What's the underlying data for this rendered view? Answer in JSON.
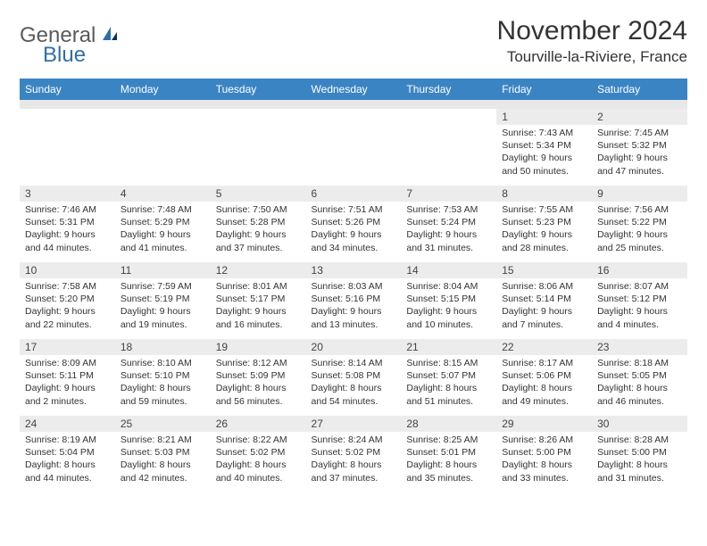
{
  "brand": {
    "part1": "General",
    "part2": "Blue"
  },
  "title": "November 2024",
  "location": "Tourville-la-Riviere, France",
  "colors": {
    "header_bg": "#3b84c4",
    "header_fg": "#ffffff",
    "daynum_bg": "#ececec",
    "blank_bg": "#e8e8e8",
    "text": "#333333",
    "logo_gray": "#5a5a5a",
    "logo_blue": "#2f6fa8"
  },
  "weekdays": [
    "Sunday",
    "Monday",
    "Tuesday",
    "Wednesday",
    "Thursday",
    "Friday",
    "Saturday"
  ],
  "weeks": [
    [
      null,
      null,
      null,
      null,
      null,
      {
        "n": "1",
        "sr": "Sunrise: 7:43 AM",
        "ss": "Sunset: 5:34 PM",
        "d1": "Daylight: 9 hours",
        "d2": "and 50 minutes."
      },
      {
        "n": "2",
        "sr": "Sunrise: 7:45 AM",
        "ss": "Sunset: 5:32 PM",
        "d1": "Daylight: 9 hours",
        "d2": "and 47 minutes."
      }
    ],
    [
      {
        "n": "3",
        "sr": "Sunrise: 7:46 AM",
        "ss": "Sunset: 5:31 PM",
        "d1": "Daylight: 9 hours",
        "d2": "and 44 minutes."
      },
      {
        "n": "4",
        "sr": "Sunrise: 7:48 AM",
        "ss": "Sunset: 5:29 PM",
        "d1": "Daylight: 9 hours",
        "d2": "and 41 minutes."
      },
      {
        "n": "5",
        "sr": "Sunrise: 7:50 AM",
        "ss": "Sunset: 5:28 PM",
        "d1": "Daylight: 9 hours",
        "d2": "and 37 minutes."
      },
      {
        "n": "6",
        "sr": "Sunrise: 7:51 AM",
        "ss": "Sunset: 5:26 PM",
        "d1": "Daylight: 9 hours",
        "d2": "and 34 minutes."
      },
      {
        "n": "7",
        "sr": "Sunrise: 7:53 AM",
        "ss": "Sunset: 5:24 PM",
        "d1": "Daylight: 9 hours",
        "d2": "and 31 minutes."
      },
      {
        "n": "8",
        "sr": "Sunrise: 7:55 AM",
        "ss": "Sunset: 5:23 PM",
        "d1": "Daylight: 9 hours",
        "d2": "and 28 minutes."
      },
      {
        "n": "9",
        "sr": "Sunrise: 7:56 AM",
        "ss": "Sunset: 5:22 PM",
        "d1": "Daylight: 9 hours",
        "d2": "and 25 minutes."
      }
    ],
    [
      {
        "n": "10",
        "sr": "Sunrise: 7:58 AM",
        "ss": "Sunset: 5:20 PM",
        "d1": "Daylight: 9 hours",
        "d2": "and 22 minutes."
      },
      {
        "n": "11",
        "sr": "Sunrise: 7:59 AM",
        "ss": "Sunset: 5:19 PM",
        "d1": "Daylight: 9 hours",
        "d2": "and 19 minutes."
      },
      {
        "n": "12",
        "sr": "Sunrise: 8:01 AM",
        "ss": "Sunset: 5:17 PM",
        "d1": "Daylight: 9 hours",
        "d2": "and 16 minutes."
      },
      {
        "n": "13",
        "sr": "Sunrise: 8:03 AM",
        "ss": "Sunset: 5:16 PM",
        "d1": "Daylight: 9 hours",
        "d2": "and 13 minutes."
      },
      {
        "n": "14",
        "sr": "Sunrise: 8:04 AM",
        "ss": "Sunset: 5:15 PM",
        "d1": "Daylight: 9 hours",
        "d2": "and 10 minutes."
      },
      {
        "n": "15",
        "sr": "Sunrise: 8:06 AM",
        "ss": "Sunset: 5:14 PM",
        "d1": "Daylight: 9 hours",
        "d2": "and 7 minutes."
      },
      {
        "n": "16",
        "sr": "Sunrise: 8:07 AM",
        "ss": "Sunset: 5:12 PM",
        "d1": "Daylight: 9 hours",
        "d2": "and 4 minutes."
      }
    ],
    [
      {
        "n": "17",
        "sr": "Sunrise: 8:09 AM",
        "ss": "Sunset: 5:11 PM",
        "d1": "Daylight: 9 hours",
        "d2": "and 2 minutes."
      },
      {
        "n": "18",
        "sr": "Sunrise: 8:10 AM",
        "ss": "Sunset: 5:10 PM",
        "d1": "Daylight: 8 hours",
        "d2": "and 59 minutes."
      },
      {
        "n": "19",
        "sr": "Sunrise: 8:12 AM",
        "ss": "Sunset: 5:09 PM",
        "d1": "Daylight: 8 hours",
        "d2": "and 56 minutes."
      },
      {
        "n": "20",
        "sr": "Sunrise: 8:14 AM",
        "ss": "Sunset: 5:08 PM",
        "d1": "Daylight: 8 hours",
        "d2": "and 54 minutes."
      },
      {
        "n": "21",
        "sr": "Sunrise: 8:15 AM",
        "ss": "Sunset: 5:07 PM",
        "d1": "Daylight: 8 hours",
        "d2": "and 51 minutes."
      },
      {
        "n": "22",
        "sr": "Sunrise: 8:17 AM",
        "ss": "Sunset: 5:06 PM",
        "d1": "Daylight: 8 hours",
        "d2": "and 49 minutes."
      },
      {
        "n": "23",
        "sr": "Sunrise: 8:18 AM",
        "ss": "Sunset: 5:05 PM",
        "d1": "Daylight: 8 hours",
        "d2": "and 46 minutes."
      }
    ],
    [
      {
        "n": "24",
        "sr": "Sunrise: 8:19 AM",
        "ss": "Sunset: 5:04 PM",
        "d1": "Daylight: 8 hours",
        "d2": "and 44 minutes."
      },
      {
        "n": "25",
        "sr": "Sunrise: 8:21 AM",
        "ss": "Sunset: 5:03 PM",
        "d1": "Daylight: 8 hours",
        "d2": "and 42 minutes."
      },
      {
        "n": "26",
        "sr": "Sunrise: 8:22 AM",
        "ss": "Sunset: 5:02 PM",
        "d1": "Daylight: 8 hours",
        "d2": "and 40 minutes."
      },
      {
        "n": "27",
        "sr": "Sunrise: 8:24 AM",
        "ss": "Sunset: 5:02 PM",
        "d1": "Daylight: 8 hours",
        "d2": "and 37 minutes."
      },
      {
        "n": "28",
        "sr": "Sunrise: 8:25 AM",
        "ss": "Sunset: 5:01 PM",
        "d1": "Daylight: 8 hours",
        "d2": "and 35 minutes."
      },
      {
        "n": "29",
        "sr": "Sunrise: 8:26 AM",
        "ss": "Sunset: 5:00 PM",
        "d1": "Daylight: 8 hours",
        "d2": "and 33 minutes."
      },
      {
        "n": "30",
        "sr": "Sunrise: 8:28 AM",
        "ss": "Sunset: 5:00 PM",
        "d1": "Daylight: 8 hours",
        "d2": "and 31 minutes."
      }
    ]
  ]
}
